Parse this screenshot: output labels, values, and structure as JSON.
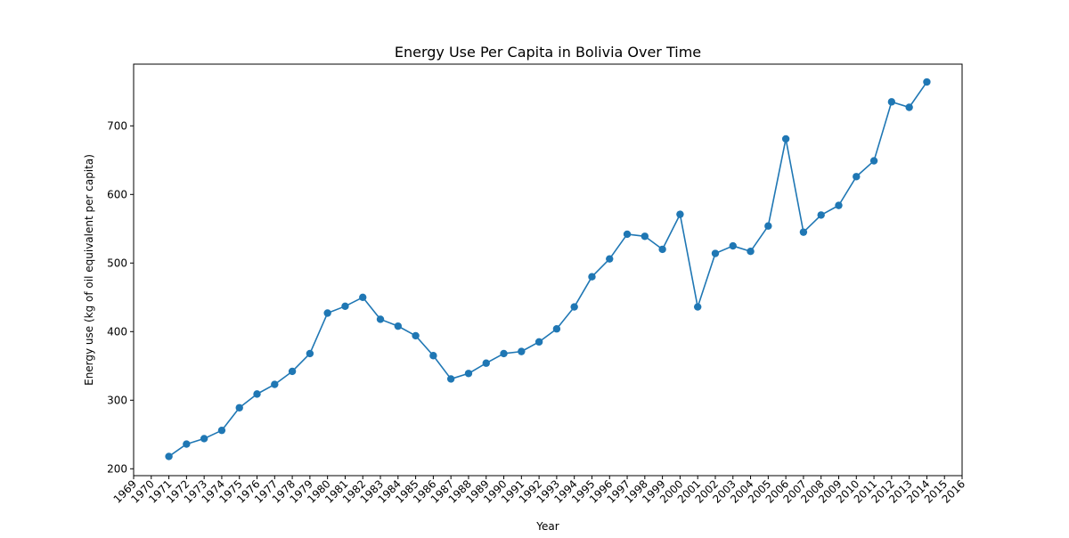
{
  "chart_data": {
    "type": "line",
    "title": "Energy Use Per Capita in Bolivia Over Time",
    "xlabel": "Year",
    "ylabel": "Energy use (kg of oil equivalent per capita)",
    "xlim": [
      1969,
      2016
    ],
    "ylim": [
      190,
      790
    ],
    "x_ticks": [
      1969,
      1970,
      1971,
      1972,
      1973,
      1974,
      1975,
      1976,
      1977,
      1978,
      1979,
      1980,
      1981,
      1982,
      1983,
      1984,
      1985,
      1986,
      1987,
      1988,
      1989,
      1990,
      1991,
      1992,
      1993,
      1994,
      1995,
      1996,
      1997,
      1998,
      1999,
      2000,
      2001,
      2002,
      2003,
      2004,
      2005,
      2006,
      2007,
      2008,
      2009,
      2010,
      2011,
      2012,
      2013,
      2014,
      2015,
      2016
    ],
    "y_ticks": [
      200,
      300,
      400,
      500,
      600,
      700
    ],
    "grid": false,
    "marker": "circle",
    "color": "#1f77b4",
    "series": [
      {
        "x": [
          1971,
          1972,
          1973,
          1974,
          1975,
          1976,
          1977,
          1978,
          1979,
          1980,
          1981,
          1982,
          1983,
          1984,
          1985,
          1986,
          1987,
          1988,
          1989,
          1990,
          1991,
          1992,
          1993,
          1994,
          1995,
          1996,
          1997,
          1998,
          1999,
          2000,
          2001,
          2002,
          2003,
          2004,
          2005,
          2006,
          2007,
          2008,
          2009,
          2010,
          2011,
          2012,
          2013,
          2014
        ],
        "values": [
          218,
          236,
          244,
          256,
          289,
          309,
          323,
          342,
          368,
          427,
          437,
          450,
          418,
          408,
          394,
          365,
          331,
          339,
          354,
          368,
          371,
          385,
          404,
          436,
          480,
          506,
          542,
          539,
          520,
          571,
          436,
          514,
          525,
          517,
          554,
          681,
          545,
          570,
          584,
          626,
          649,
          735,
          727,
          764
        ]
      }
    ]
  }
}
